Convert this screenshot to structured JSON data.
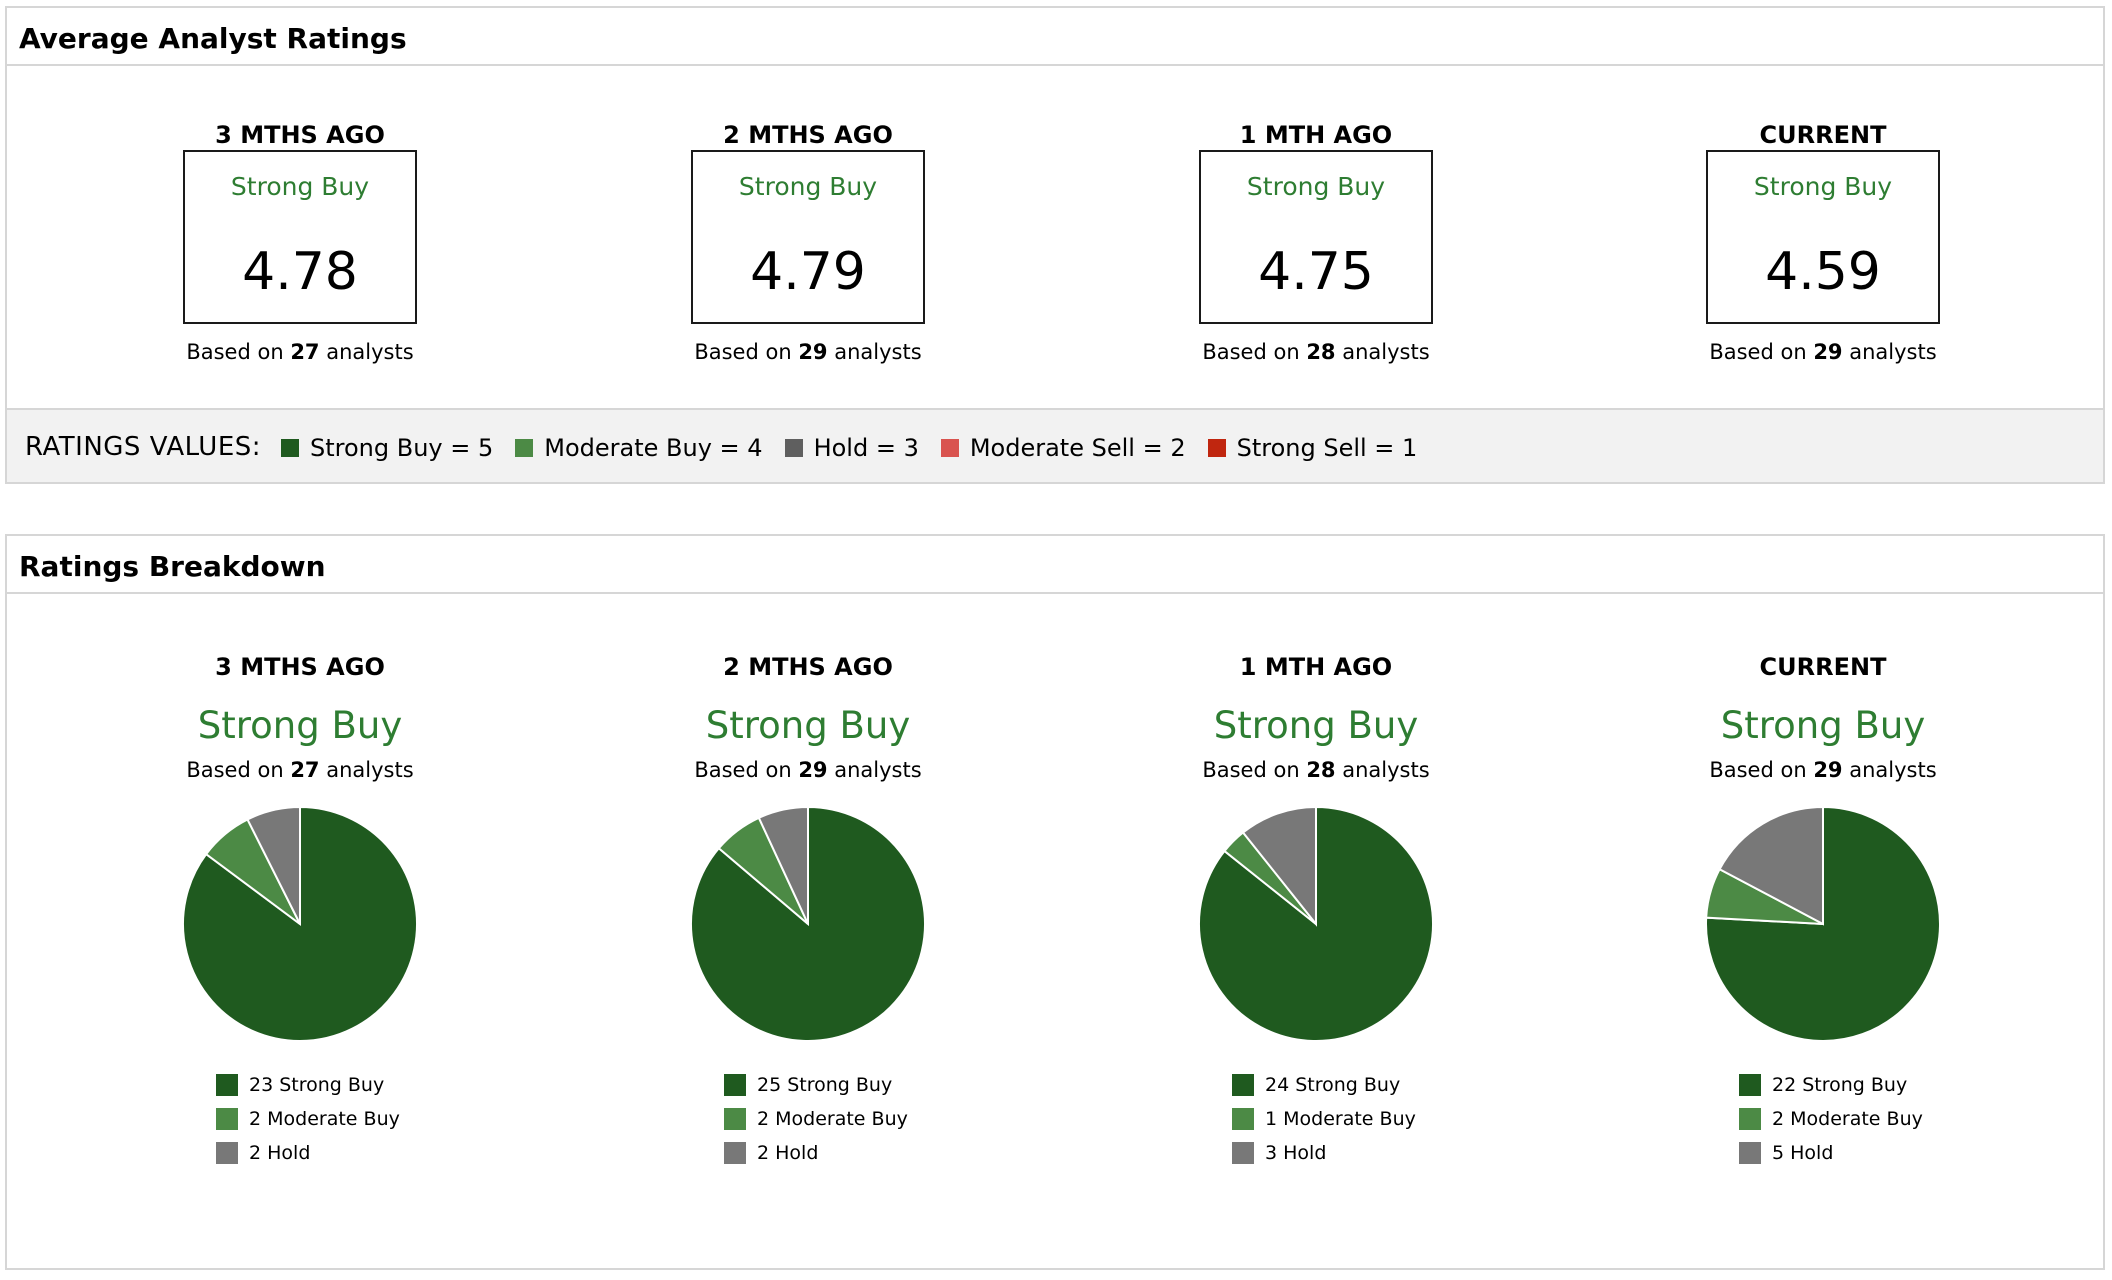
{
  "colors": {
    "strong_buy": "#1f5a1f",
    "moderate_buy": "#4c8a45",
    "hold": "#787878",
    "moderate_sell": "#d9534f",
    "strong_sell": "#c0260f",
    "rating_text": "#2e7d32"
  },
  "average": {
    "title": "Average Analyst Ratings",
    "periods": [
      {
        "label": "3 MTHS AGO",
        "rating": "Strong Buy",
        "score": "4.78",
        "based_prefix": "Based on ",
        "count": "27",
        "based_suffix": " analysts"
      },
      {
        "label": "2 MTHS AGO",
        "rating": "Strong Buy",
        "score": "4.79",
        "based_prefix": "Based on ",
        "count": "29",
        "based_suffix": " analysts"
      },
      {
        "label": "1 MTH AGO",
        "rating": "Strong Buy",
        "score": "4.75",
        "based_prefix": "Based on ",
        "count": "28",
        "based_suffix": " analysts"
      },
      {
        "label": "CURRENT",
        "rating": "Strong Buy",
        "score": "4.59",
        "based_prefix": "Based on ",
        "count": "29",
        "based_suffix": " analysts"
      }
    ],
    "legend": {
      "title": "RATINGS VALUES:",
      "items": [
        {
          "label": "Strong Buy = 5",
          "color": "#1f5a1f"
        },
        {
          "label": "Moderate Buy = 4",
          "color": "#4c8a45"
        },
        {
          "label": "Hold = 3",
          "color": "#5f5f5f"
        },
        {
          "label": "Moderate Sell = 2",
          "color": "#d9534f"
        },
        {
          "label": "Strong Sell = 1",
          "color": "#c0260f"
        }
      ]
    }
  },
  "breakdown": {
    "title": "Ratings Breakdown",
    "periods": [
      {
        "label": "3 MTHS AGO",
        "rating": "Strong Buy",
        "based_prefix": "Based on ",
        "count": "27",
        "based_suffix": " analysts"
      },
      {
        "label": "2 MTHS AGO",
        "rating": "Strong Buy",
        "based_prefix": "Based on ",
        "count": "29",
        "based_suffix": " analysts"
      },
      {
        "label": "1 MTH AGO",
        "rating": "Strong Buy",
        "based_prefix": "Based on ",
        "count": "28",
        "based_suffix": " analysts"
      },
      {
        "label": "CURRENT",
        "rating": "Strong Buy",
        "based_prefix": "Based on ",
        "count": "29",
        "based_suffix": " analysts"
      }
    ]
  },
  "chart_data": [
    {
      "type": "pie",
      "categories": [
        "Strong Buy",
        "Moderate Buy",
        "Hold"
      ],
      "values": [
        23,
        2,
        2
      ],
      "labels": [
        "23 Strong Buy",
        "2 Moderate Buy",
        "2 Hold"
      ],
      "colors": [
        "#1f5a1f",
        "#4c8a45",
        "#787878"
      ]
    },
    {
      "type": "pie",
      "categories": [
        "Strong Buy",
        "Moderate Buy",
        "Hold"
      ],
      "values": [
        25,
        2,
        2
      ],
      "labels": [
        "25 Strong Buy",
        "2 Moderate Buy",
        "2 Hold"
      ],
      "colors": [
        "#1f5a1f",
        "#4c8a45",
        "#787878"
      ]
    },
    {
      "type": "pie",
      "categories": [
        "Strong Buy",
        "Moderate Buy",
        "Hold"
      ],
      "values": [
        24,
        1,
        3
      ],
      "labels": [
        "24 Strong Buy",
        "1 Moderate Buy",
        "3 Hold"
      ],
      "colors": [
        "#1f5a1f",
        "#4c8a45",
        "#787878"
      ]
    },
    {
      "type": "pie",
      "categories": [
        "Strong Buy",
        "Moderate Buy",
        "Hold"
      ],
      "values": [
        22,
        2,
        5
      ],
      "labels": [
        "22 Strong Buy",
        "2 Moderate Buy",
        "5 Hold"
      ],
      "colors": [
        "#1f5a1f",
        "#4c8a45",
        "#787878"
      ]
    }
  ]
}
